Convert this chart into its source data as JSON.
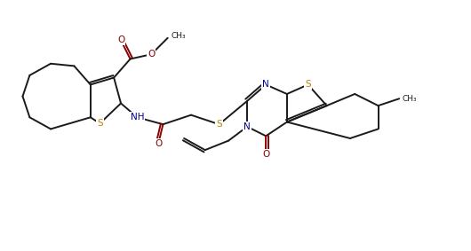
{
  "bg_color": "#ffffff",
  "line_color": "#1a1a1a",
  "atom_S_color": "#b8860b",
  "atom_N_color": "#00008b",
  "atom_O_color": "#8b0000",
  "line_width": 1.4,
  "dbo": 0.055,
  "fig_width": 5.3,
  "fig_height": 2.83,
  "dpi": 100,
  "xlim": [
    0,
    10.0
  ],
  "ylim": [
    0,
    5.35
  ]
}
